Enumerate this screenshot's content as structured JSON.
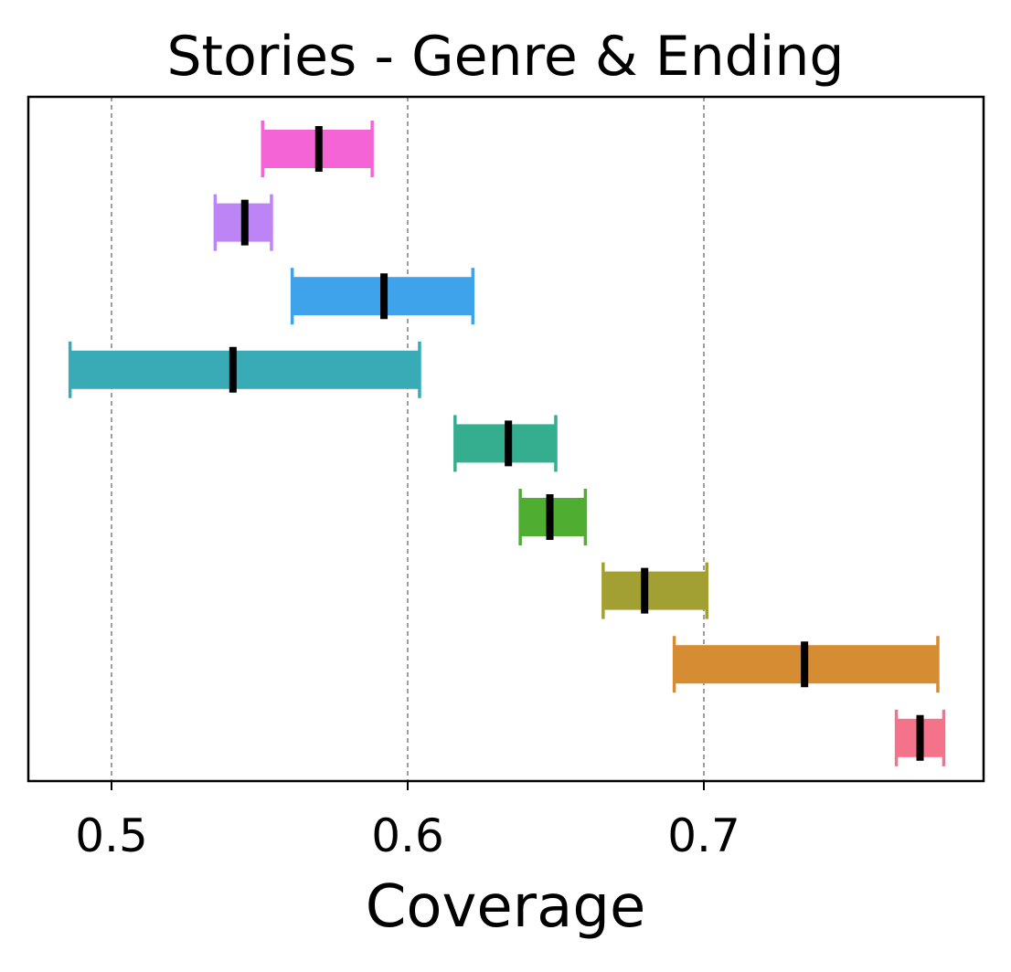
{
  "chart_data": {
    "type": "interval",
    "title": "Stories - Genre & Ending",
    "xlabel": "Coverage",
    "ylabel": "",
    "xlim": [
      0.486,
      0.792
    ],
    "xticks": [
      {
        "value": 0.5,
        "label": "0.5"
      },
      {
        "value": 0.6,
        "label": "0.6"
      },
      {
        "value": 0.7,
        "label": "0.7"
      }
    ],
    "grid": "vertical-dashed",
    "series": [
      {
        "low": 0.551,
        "high": 0.588,
        "mean": 0.57,
        "color": "#f564d6"
      },
      {
        "low": 0.535,
        "high": 0.554,
        "mean": 0.545,
        "color": "#bc84f4"
      },
      {
        "low": 0.561,
        "high": 0.622,
        "mean": 0.592,
        "color": "#3ea3ea"
      },
      {
        "low": 0.486,
        "high": 0.604,
        "mean": 0.541,
        "color": "#38abb7"
      },
      {
        "low": 0.616,
        "high": 0.65,
        "mean": 0.634,
        "color": "#35ad8f"
      },
      {
        "low": 0.638,
        "high": 0.66,
        "mean": 0.648,
        "color": "#4fae32"
      },
      {
        "low": 0.666,
        "high": 0.701,
        "mean": 0.68,
        "color": "#a3a033"
      },
      {
        "low": 0.69,
        "high": 0.779,
        "mean": 0.734,
        "color": "#d68c33"
      },
      {
        "low": 0.765,
        "high": 0.781,
        "mean": 0.773,
        "color": "#f4728a"
      }
    ]
  }
}
